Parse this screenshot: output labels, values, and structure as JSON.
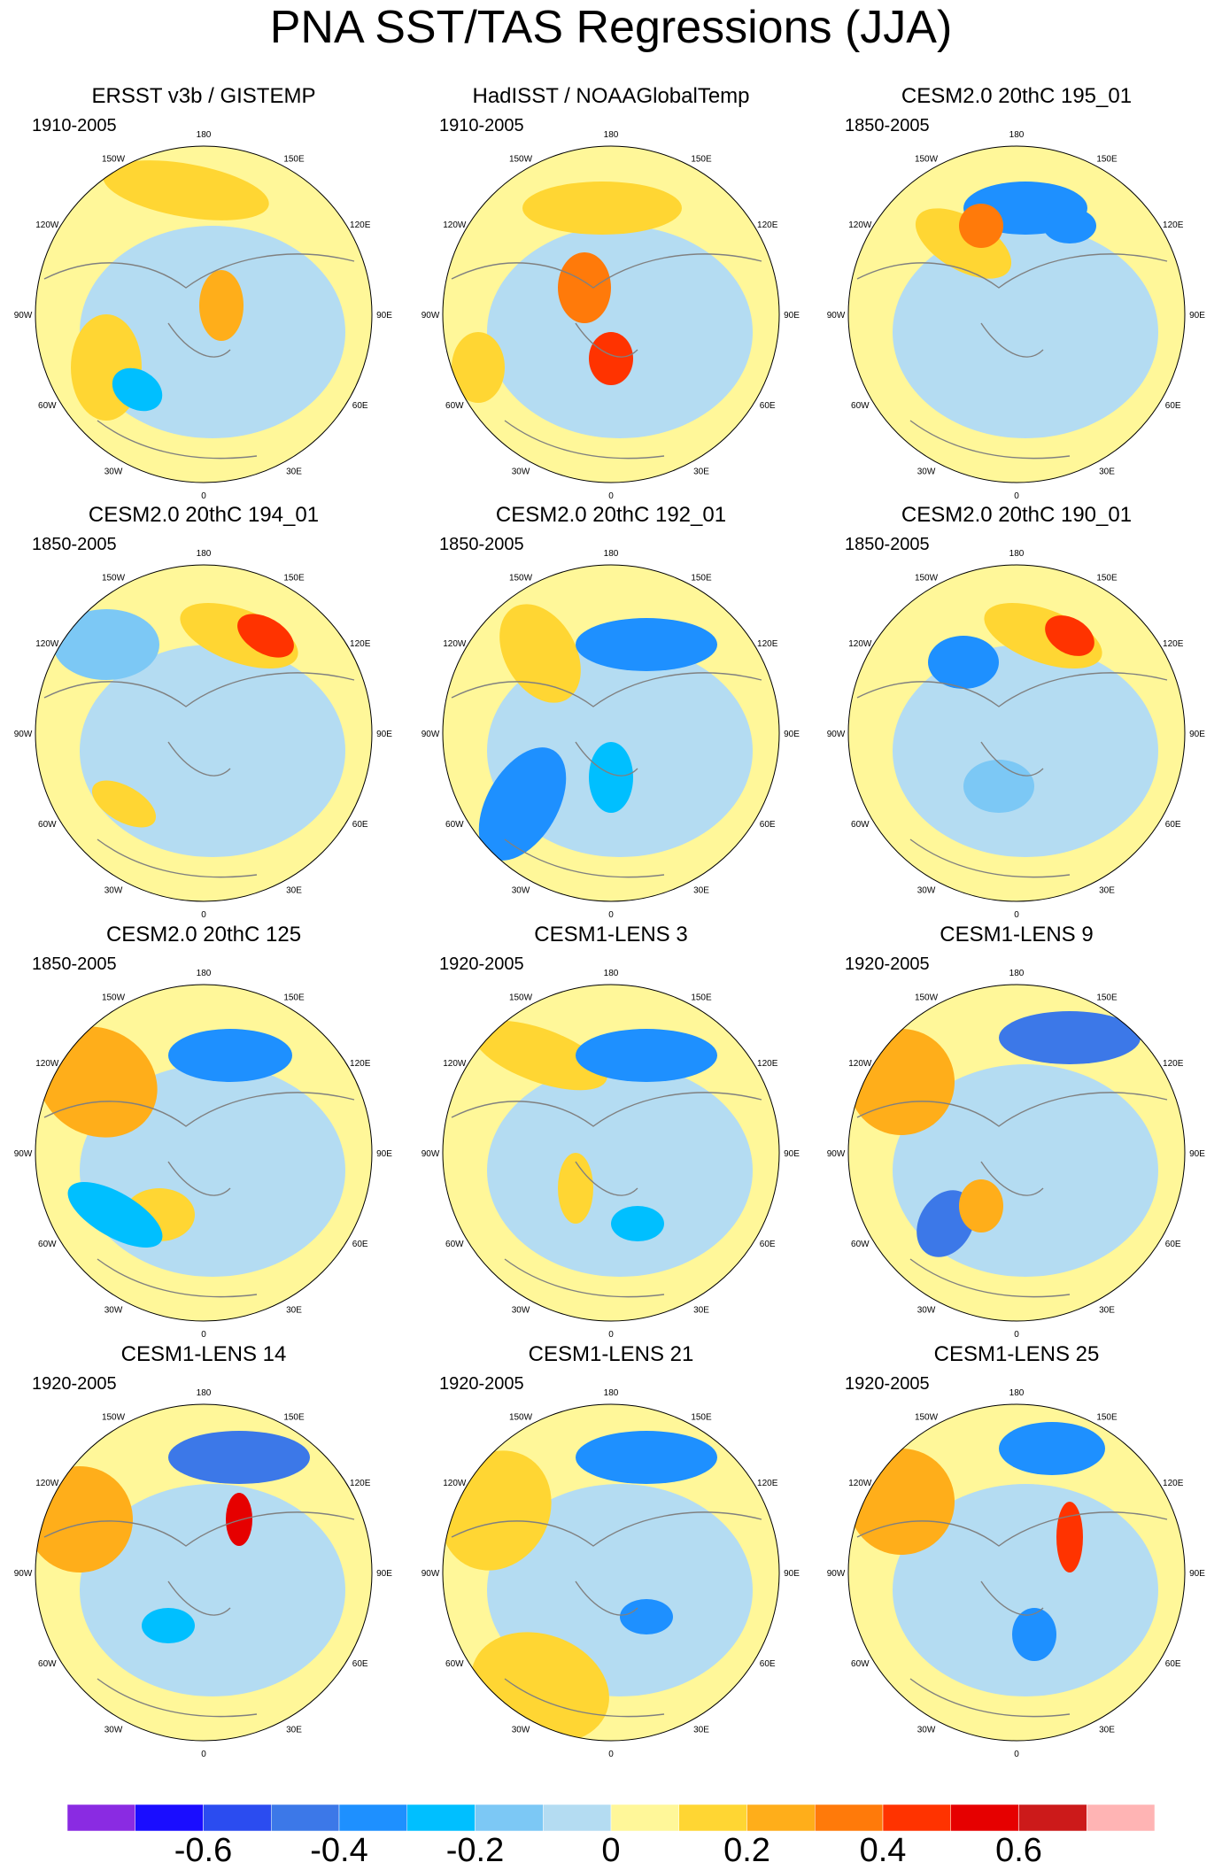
{
  "title": "PNA SST/TAS Regressions (JJA)",
  "longitude_labels": [
    "180",
    "150E",
    "120E",
    "90E",
    "60E",
    "30E",
    "0",
    "30W",
    "60W",
    "90W",
    "120W",
    "150W"
  ],
  "panels": [
    {
      "title": "ERSST v3b / GISTEMP",
      "period": "1910-2005"
    },
    {
      "title": "HadISST / NOAAGlobalTemp",
      "period": "1910-2005"
    },
    {
      "title": "CESM2.0 20thC 195_01",
      "period": "1850-2005"
    },
    {
      "title": "CESM2.0 20thC 194_01",
      "period": "1850-2005"
    },
    {
      "title": "CESM2.0 20thC 192_01",
      "period": "1850-2005"
    },
    {
      "title": "CESM2.0 20thC 190_01",
      "period": "1850-2005"
    },
    {
      "title": "CESM2.0 20thC 125",
      "period": "1850-2005"
    },
    {
      "title": "CESM1-LENS 3",
      "period": "1920-2005"
    },
    {
      "title": "CESM1-LENS 9",
      "period": "1920-2005"
    },
    {
      "title": "CESM1-LENS 14",
      "period": "1920-2005"
    },
    {
      "title": "CESM1-LENS 21",
      "period": "1920-2005"
    },
    {
      "title": "CESM1-LENS 25",
      "period": "1920-2005"
    }
  ],
  "colorbar": {
    "colors": [
      "#8a2be2",
      "#1a0dff",
      "#2b4cf0",
      "#3c78e8",
      "#1e90ff",
      "#00bfff",
      "#7cc8f5",
      "#b4dcf2",
      "#fff799",
      "#ffd633",
      "#ffae1a",
      "#ff7a0a",
      "#ff3300",
      "#e60000",
      "#cc1a1a",
      "#ffb4b4"
    ],
    "tick_labels": [
      "-0.6",
      "-0.4",
      "-0.2",
      "0",
      "0.2",
      "0.4",
      "0.6"
    ]
  }
}
